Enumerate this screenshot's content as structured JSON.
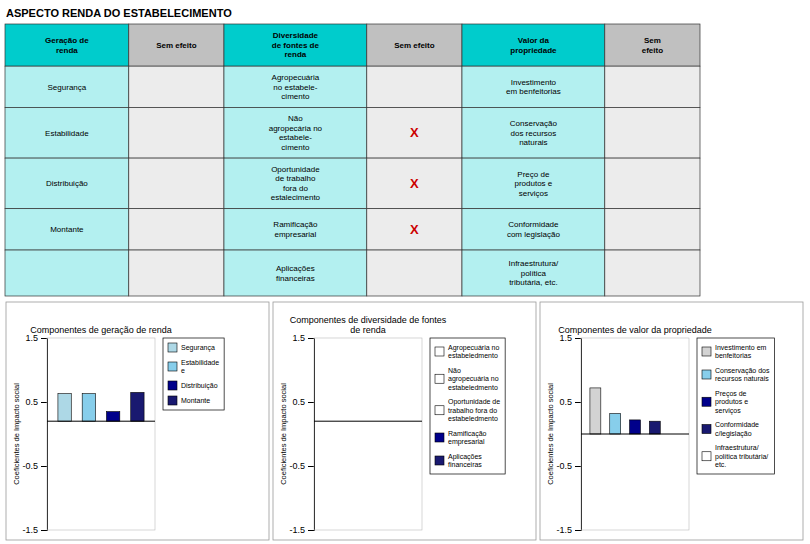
{
  "chart_data": [
    {
      "type": "table",
      "title": "ASPECTO RENDA DO ESTABELECIMENTO",
      "columns": [
        "Geração de\nrenda",
        "Sem efeito",
        "Diversidade\nde fontes de\nrenda",
        "Sem efeito",
        "Valor da\npropriedade",
        "Sem\nefeito"
      ],
      "colors": [
        "#00cccc",
        "#c0c0c0",
        "#00cccc",
        "#c0c0c0",
        "#00cccc",
        "#c0c0c0"
      ],
      "color": "#cc0000",
      "rows": [
        [
          "Segurança",
          null,
          "Agropecuária\nno estabele-\ncimento",
          null,
          "Investimento\nem benfeitorias",
          null
        ],
        [
          "Estabilidade",
          null,
          "Não\nagropecária no\nestabele-\ncimento",
          "X",
          "Conservação\ndos recursos\nnaturais",
          null
        ],
        [
          "Distribuição",
          null,
          "Oportunidade\nde trabalho\nfora do\nestalecimento",
          "X",
          "Preço de\nprodutos e\nserviços",
          null
        ],
        [
          "Montante",
          null,
          "Ramificação\nempresarial",
          "X",
          "Conformidade\ncom legislação",
          null
        ],
        [
          null,
          null,
          "Aplicações\nfinanceiras",
          null,
          "Infraestrutura/\npolítica\ntributária, etc.",
          null
        ]
      ]
    },
    {
      "type": "bar",
      "title": "Componentes de geração de renda",
      "ylabel": "Coeficientes de Impacto social",
      "categories": [
        "Segurança",
        "Estabilidade\ne",
        "Distribuição",
        "Montante"
      ],
      "values": [
        0.63,
        0.63,
        0.35,
        0.65
      ],
      "colors": [
        "#add8e6",
        "#87ceeb",
        "#00008b",
        "#191970"
      ],
      "baseline": 0.2,
      "ylim": [
        -1.5,
        1.5
      ],
      "yticks": [
        -1.5,
        -0.5,
        0.5,
        1.5
      ],
      "legend": "right",
      "tick_labels": "y",
      "grid": false
    },
    {
      "type": "bar",
      "title": "Componentes de diversidade de fontes\nde renda",
      "ylabel": "Coeficientes de Impacto social",
      "categories": [
        "Agropecuária no\nestabeledmento",
        "Não\nagropecuária no\nestabeledmento",
        "Oportunidade de\ntrabalho fora do\nestabeledmento",
        "Ramificação\nempresarial",
        "Aplicações\nfinanceiras"
      ],
      "colors": [
        "#ffffff",
        "#ffffff",
        "#ffffff",
        "#00008b",
        "#191970"
      ],
      "baseline": 0.2,
      "ylim": [
        -1.5,
        1.5
      ],
      "yticks": [
        -1.5,
        -0.5,
        0.5,
        1.5
      ],
      "legend": "right",
      "tick_labels": "y",
      "grid": false
    },
    {
      "type": "bar",
      "title": "Componentes de valor da propriedade",
      "ylabel": "Coeficientes de Impacto social",
      "categories": [
        "Investimento em\nbenfeitorias",
        "Conservação dos\nrecursos naturais",
        "Preços de\nprodutos e\nserviços",
        "Conformidade\nc/legislação",
        "Infraestrutura/\npolítica tributária/\netc."
      ],
      "values": [
        0.72,
        0.32,
        0.22,
        0.2,
        0.0
      ],
      "colors": [
        "#d3d3d3",
        "#87ceeb",
        "#00008b",
        "#191970",
        "#ffffff"
      ],
      "baseline": 0.0,
      "ylim": [
        -1.5,
        1.5
      ],
      "yticks": [
        -1.5,
        -0.5,
        0.5,
        1.5
      ],
      "legend": "right",
      "tick_labels": "y",
      "grid": false
    }
  ]
}
